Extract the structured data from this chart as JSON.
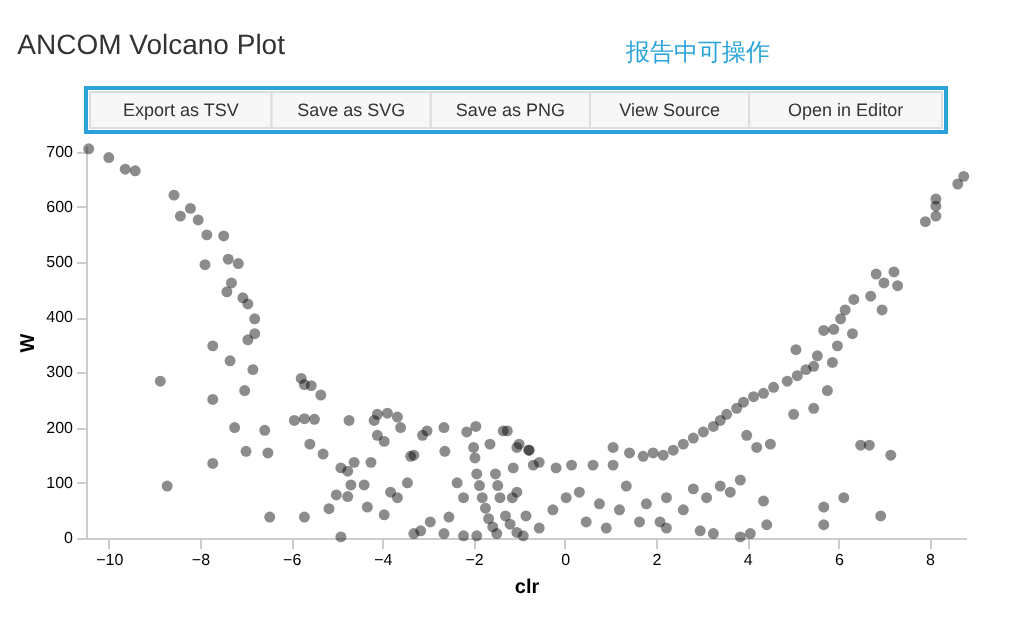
{
  "chart_data": {
    "type": "scatter",
    "title": "ANCOM Volcano Plot",
    "xlabel": "clr",
    "ylabel": "W",
    "annotations": [
      "报告中可操作",
      "Export as TSV",
      "Save as SVG",
      "Save as PNG",
      "View Source",
      "Open in Editor"
    ],
    "xlim": [
      -10.5,
      8.8
    ],
    "ylim": [
      0,
      710
    ],
    "xticks": [
      -10,
      -8,
      -6,
      -4,
      -2,
      0,
      2,
      4,
      6,
      8
    ],
    "yticks": [
      0,
      100,
      200,
      300,
      400,
      500,
      600,
      700
    ],
    "grid": false,
    "marker": "circle",
    "series": [
      {
        "color": "#000000",
        "x": [
          -10.44,
          -10,
          -9.64,
          -9.42,
          -8.57,
          -8.43,
          -8.21,
          -8.04,
          -7.85,
          -7.89,
          -7.48,
          -7.38,
          -7.16,
          -7.31,
          -7.41,
          -7.06,
          -6.95,
          -6.8,
          -6.8,
          -6.95,
          -6.84,
          -7.02,
          -7.34,
          -7.72,
          -7.72,
          -8.87,
          -8.72,
          -7.72,
          -7.24,
          -6.99,
          -6.58,
          -6.51,
          -6.47,
          -5.78,
          -5.71,
          -5.56,
          -5.35,
          -5.93,
          -5.71,
          -5.49,
          -5.59,
          -5.3,
          -5.71,
          -5.17,
          -5.01,
          -4.91,
          -4.76,
          -4.73,
          -4.69,
          -4.76,
          -4.91,
          -4.62,
          -4.4,
          -4.25,
          -4.18,
          -4.11,
          -4.11,
          -3.96,
          -3.89,
          -3.67,
          -3.6,
          -3.67,
          -3.45,
          -3.38,
          -3.31,
          -3.12,
          -3.02,
          -2.65,
          -2.63,
          -2.36,
          -2.22,
          -2.54,
          -3.16,
          -3.31,
          -3.82,
          -3.96,
          -4.33,
          -2.95,
          -2.65,
          -2.22,
          -1.93,
          -2.15,
          -1.95,
          -2,
          -1.97,
          -1.93,
          -1.87,
          -1.81,
          -1.74,
          -1.67,
          -1.58,
          -1.49,
          -1.52,
          -1.47,
          -1.42,
          -1.3,
          -1.2,
          -1.05,
          -0.91,
          -1.64,
          -1.35,
          -1.05,
          -0.79,
          -1.13,
          -1.05,
          -0.69,
          8.62,
          8.75,
          8.14,
          8.14,
          8.14,
          7.91,
          6.83,
          7.0,
          7.22,
          7.3,
          6.96,
          6.71,
          6.34,
          6.15,
          6.05,
          5.9,
          5.68,
          5.98,
          6.31,
          5.87,
          5.54,
          5.46,
          5.07,
          5.29,
          5.1,
          4.88,
          4.58,
          4.36,
          4.14,
          3.92,
          3.77,
          3.55,
          3.41,
          3.26,
          3.04,
          2.82,
          2.6,
          2.38,
          2.16,
          1.94,
          1.72,
          1.42,
          1.06,
          1.06,
          0.62,
          0.15,
          -0.19,
          -0.56,
          -0.78,
          -1.26,
          -1.0,
          5.46,
          5.76,
          5.02,
          4.51,
          4.21,
          3.99,
          3.85,
          3.63,
          4.36,
          4.43,
          4.07,
          3.85,
          5.68,
          5.68,
          6.12,
          6.49,
          6.68,
          7.15,
          6.93,
          3.41,
          3.11,
          2.82,
          2.6,
          2.23,
          2.09,
          1.79,
          1.64,
          1.35,
          1.2,
          0.76,
          0.47,
          0.32,
          0.03,
          -0.26,
          -0.56,
          -0.85,
          -1.15,
          0.91,
          2.23,
          2.97,
          3.26
        ],
        "values": [
          705,
          689,
          668,
          665,
          621,
          583,
          597,
          576,
          549,
          495,
          547,
          505,
          497,
          462,
          446,
          435,
          424,
          397,
          370,
          359,
          305,
          267,
          321,
          348,
          251,
          284,
          94,
          135,
          200,
          157,
          195,
          154,
          38,
          289,
          278,
          276,
          259,
          213,
          216,
          215,
          170,
          152,
          38,
          53,
          78,
          127,
          121,
          213,
          96,
          75,
          2,
          137,
          96,
          137,
          213,
          186,
          224,
          175,
          226,
          219,
          200,
          73,
          100,
          148,
          150,
          186,
          194,
          200,
          157,
          100,
          73,
          38,
          13,
          8,
          83,
          42,
          56,
          29,
          8,
          4,
          4,
          192,
          202,
          164,
          145,
          116,
          95,
          73,
          54,
          35,
          20,
          8,
          116,
          95,
          73,
          40,
          25,
          10,
          4,
          170,
          194,
          164,
          159,
          127,
          83,
          132,
          641,
          655,
          614,
          601,
          583,
          573,
          478,
          462,
          482,
          457,
          413,
          438,
          432,
          413,
          397,
          378,
          376,
          348,
          370,
          318,
          330,
          311,
          341,
          305,
          294,
          284,
          273,
          262,
          256,
          246,
          235,
          224,
          213,
          202,
          192,
          181,
          170,
          159,
          150,
          154,
          148,
          154,
          164,
          132,
          132,
          132,
          127,
          137,
          159,
          194,
          170,
          235,
          267,
          224,
          170,
          164,
          186,
          105,
          83,
          67,
          24,
          8,
          2,
          24,
          56,
          73,
          168,
          168,
          150,
          40,
          94,
          73,
          89,
          51,
          73,
          29,
          62,
          29,
          94,
          51,
          62,
          29,
          83,
          73,
          51,
          18,
          40,
          73,
          18,
          18,
          13,
          8
        ]
      }
    ]
  }
}
